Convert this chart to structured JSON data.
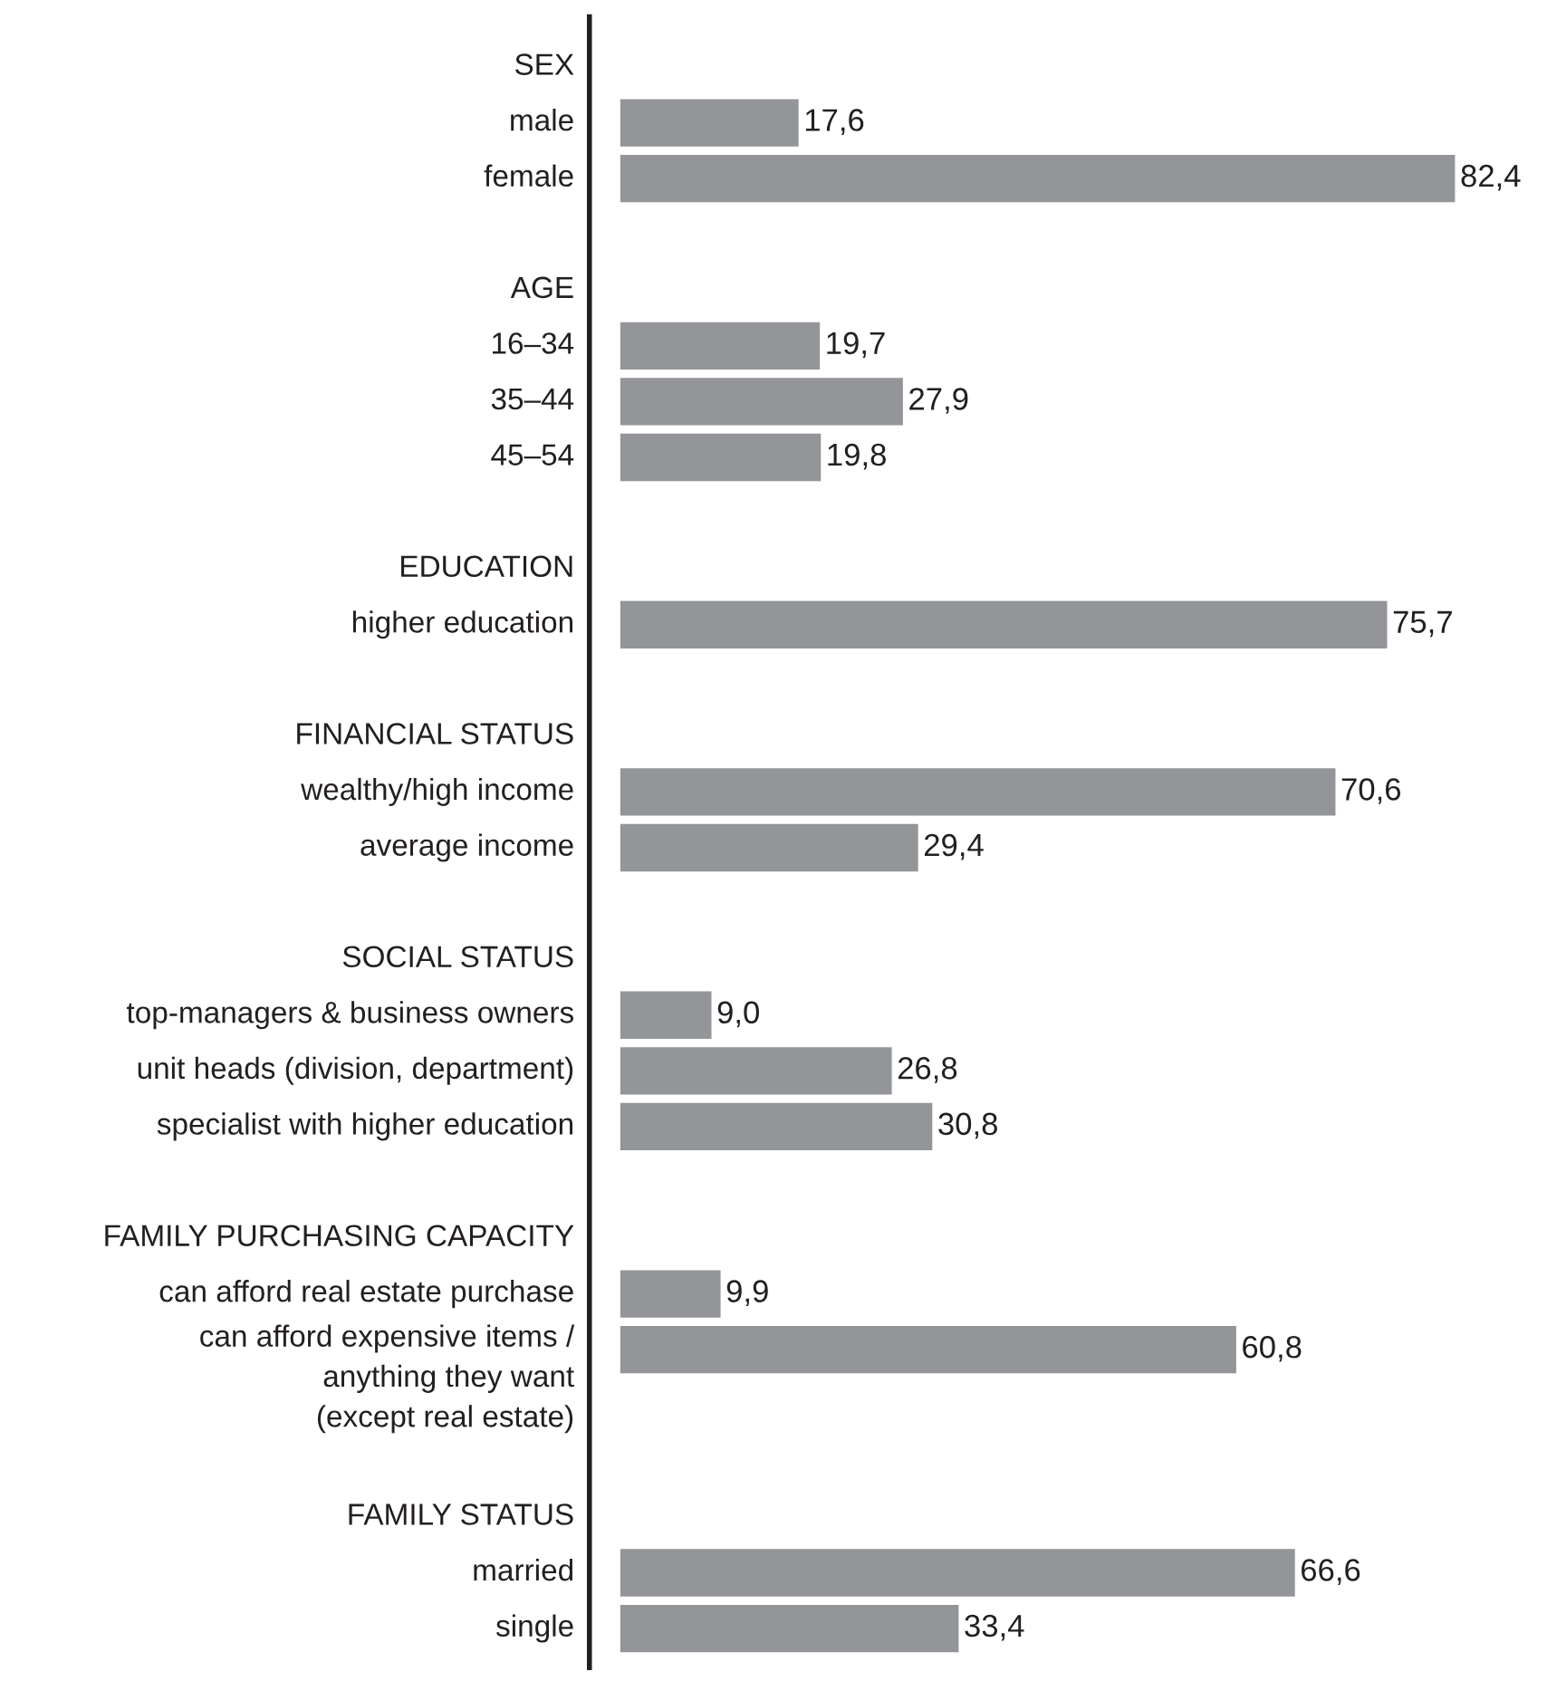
{
  "chart_data": {
    "type": "bar",
    "orientation": "horizontal",
    "color": "#939598",
    "categories": [
      "SEX",
      "male",
      "female",
      null,
      "AGE",
      "16–34",
      "35–44",
      "45–54",
      null,
      "EDUCATION",
      "higher education",
      null,
      "FINANCIAL STATUS",
      "wealthy/high income",
      "average income",
      null,
      "SOCIAL STATUS",
      "top-managers & business owners",
      "unit heads (division, department)",
      "specialist with higher education",
      null,
      "FAMILY PURCHASING CAPACITY",
      "can afford real estate purchase",
      "can afford expensive items /\nanything they want\n(except real estate)",
      null,
      null,
      "FAMILY STATUS",
      "married",
      "single"
    ],
    "values": [
      null,
      17.6,
      82.4,
      null,
      null,
      19.7,
      27.9,
      19.8,
      null,
      null,
      75.7,
      null,
      null,
      70.6,
      29.4,
      null,
      null,
      9.0,
      26.8,
      30.8,
      null,
      null,
      9.9,
      60.8,
      null,
      null,
      null,
      66.6,
      33.4
    ],
    "value_labels": [
      null,
      "17,6",
      "82,4",
      null,
      null,
      "19,7",
      "27,9",
      "19,8",
      null,
      null,
      "75,7",
      null,
      null,
      "70,6",
      "29,4",
      null,
      null,
      "9,0",
      "26,8",
      "30,8",
      null,
      null,
      "9,9",
      "60,8",
      null,
      null,
      null,
      "66,6",
      "33,4"
    ],
    "legend": false
  }
}
